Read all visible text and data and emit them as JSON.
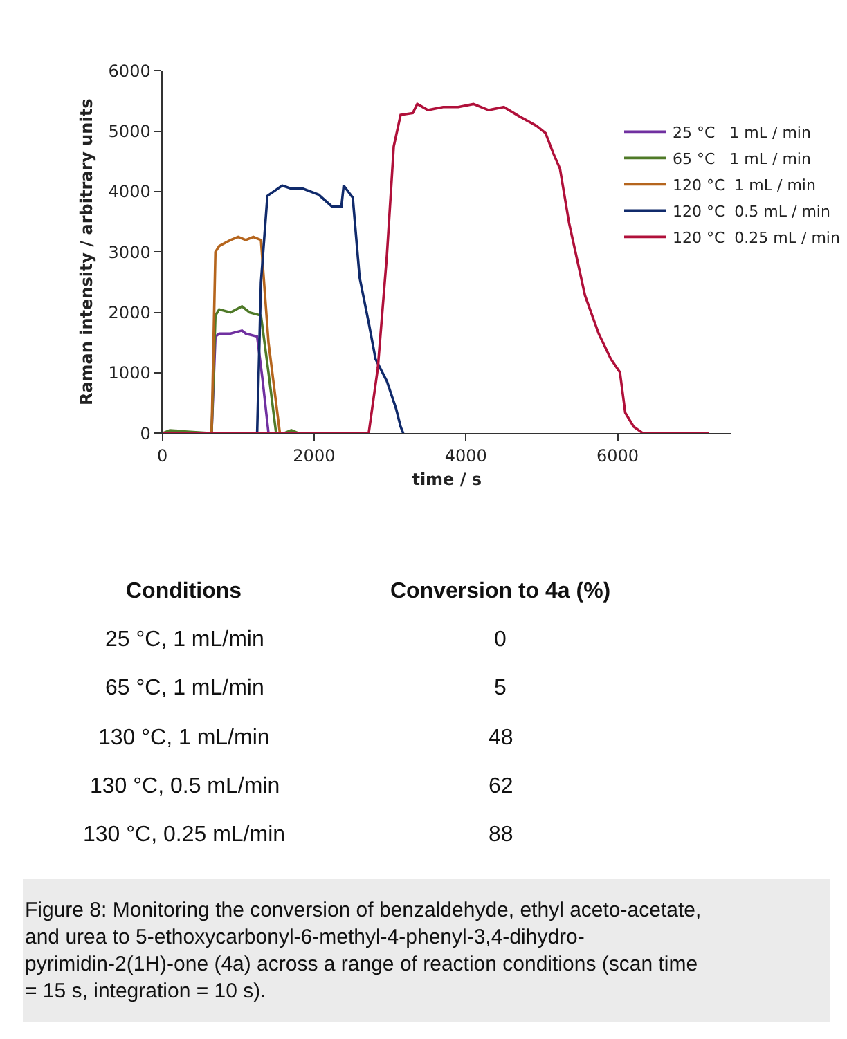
{
  "chart_data": {
    "type": "line",
    "xlabel": "time / s",
    "ylabel": "Raman intensity / arbitrary units",
    "xlim": [
      0,
      7500
    ],
    "xticks": [
      0,
      2000,
      4000,
      6000
    ],
    "ylim": [
      0,
      6000
    ],
    "yticks": [
      0,
      1000,
      2000,
      3000,
      4000,
      5000,
      6000
    ],
    "legend": "top right",
    "marker": "none",
    "line_style": "solid",
    "series": [
      {
        "name": "25 °C   1 mL / min",
        "color": "#7030a0",
        "x": [
          0,
          300,
          650,
          700,
          750,
          900,
          1050,
          1100,
          1250,
          1320,
          1400
        ],
        "values": [
          0,
          0,
          0,
          1600,
          1650,
          1650,
          1700,
          1650,
          1600,
          900,
          0
        ]
      },
      {
        "name": "65 °C   1 mL / min",
        "color": "#4f7a28",
        "x": [
          0,
          100,
          300,
          650,
          700,
          750,
          900,
          1050,
          1150,
          1300,
          1400,
          1500,
          1600,
          1700,
          1800
        ],
        "values": [
          0,
          50,
          30,
          0,
          1950,
          2050,
          2000,
          2100,
          2000,
          1950,
          1000,
          0,
          0,
          50,
          0
        ]
      },
      {
        "name": "120 °C  1 mL / min",
        "color": "#b5651d",
        "x": [
          0,
          650,
          700,
          750,
          900,
          1000,
          1100,
          1200,
          1300,
          1400,
          1550
        ],
        "values": [
          0,
          0,
          3000,
          3100,
          3200,
          3250,
          3200,
          3250,
          3200,
          1500,
          0
        ]
      },
      {
        "name": "120 °C  0.5 mL / min",
        "color": "#102a6b",
        "x": [
          0,
          1200,
          1250,
          1300,
          1385,
          1580,
          1700,
          1850,
          2060,
          2240,
          2360,
          2390,
          2510,
          2600,
          2720,
          2810,
          2960,
          3080,
          3140,
          3175
        ],
        "values": [
          0,
          0,
          0,
          2500,
          3930,
          4100,
          4050,
          4050,
          3950,
          3750,
          3750,
          4100,
          3900,
          2580,
          1830,
          1230,
          860,
          410,
          110,
          0
        ]
      },
      {
        "name": "120 °C  0.25 mL / min",
        "color": "#b0103a",
        "x": [
          0,
          2720,
          2840,
          2960,
          3050,
          3140,
          3300,
          3360,
          3500,
          3700,
          3900,
          4100,
          4300,
          4500,
          4700,
          4930,
          5050,
          5150,
          5240,
          5360,
          5570,
          5750,
          5910,
          6030,
          6100,
          6210,
          6335,
          7200
        ],
        "values": [
          0,
          0,
          1080,
          2950,
          4750,
          5270,
          5300,
          5450,
          5350,
          5400,
          5400,
          5450,
          5350,
          5400,
          5250,
          5090,
          4970,
          4640,
          4380,
          3480,
          2280,
          1650,
          1230,
          1010,
          340,
          110,
          0,
          0
        ]
      }
    ],
    "annotations": [
      "Conditions",
      "Conversion to 4a (%)",
      "25 °C, 1 mL/min",
      "0",
      "65 °C, 1 mL/min",
      "5",
      "130 °C, 1 mL/min",
      "48",
      "130 °C, 0.5 mL/min",
      "62",
      "130 °C, 0.25 mL/min",
      "88",
      "Figure 8: Monitoring the conversion of benzaldehyde, ethyl aceto-acetate, and urea to 5-ethoxycarbonyl-6-methyl-4-phenyl-3,4-dihydro-pyrimidin-2(1H)-one (4a) across a range of reaction conditions (scan time = 15 s, integration = 10 s)."
    ]
  }
}
